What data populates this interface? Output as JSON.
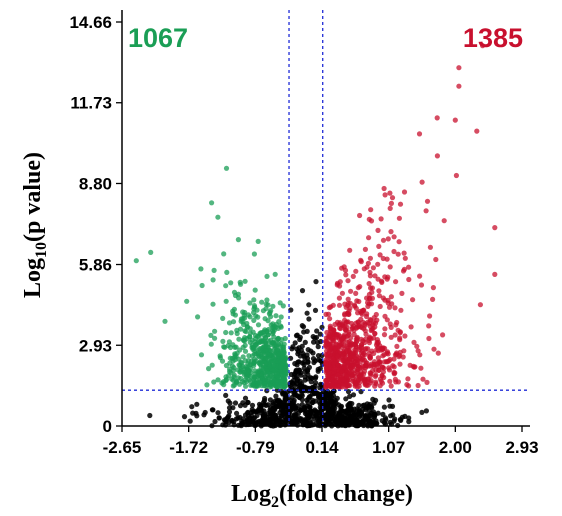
{
  "chart_data": {
    "type": "scatter",
    "title": "",
    "xlabel": "Log2(fold change)",
    "xlabel_parts": {
      "base": "Log",
      "sub": "2",
      "rest": "(fold change)"
    },
    "ylabel": "Log10(p value)",
    "ylabel_parts": {
      "base": "Log",
      "sub": "10",
      "rest": "(p value)"
    },
    "xlim": [
      -2.65,
      2.93
    ],
    "ylim": [
      0,
      14.66
    ],
    "x_ticks": [
      -2.65,
      -1.72,
      -0.79,
      0.14,
      1.07,
      2.0,
      2.93
    ],
    "x_tick_labels": [
      "-2.65",
      "-1.72",
      "-0.79",
      "0.14",
      "1.07",
      "2.00",
      "2.93"
    ],
    "y_ticks": [
      0,
      2.93,
      5.86,
      8.8,
      11.73,
      14.66
    ],
    "y_tick_labels": [
      "0",
      "2.93",
      "5.86",
      "8.80",
      "11.73",
      "14.66"
    ],
    "thresholds": {
      "x_low": -0.32,
      "x_high": 0.15,
      "y": 1.3
    },
    "grid": false,
    "legend": "none",
    "annotations": [
      {
        "text": "1067",
        "color": "#1a9e55",
        "position": "top-left"
      },
      {
        "text": "1385",
        "color": "#c8102e",
        "position": "top-right"
      }
    ],
    "series": [
      {
        "group": "down",
        "color": "#1a9e55",
        "count": 1067
      },
      {
        "group": "up",
        "color": "#c8102e",
        "count": 1385
      },
      {
        "group": "not-significant",
        "color": "#000000"
      }
    ]
  }
}
